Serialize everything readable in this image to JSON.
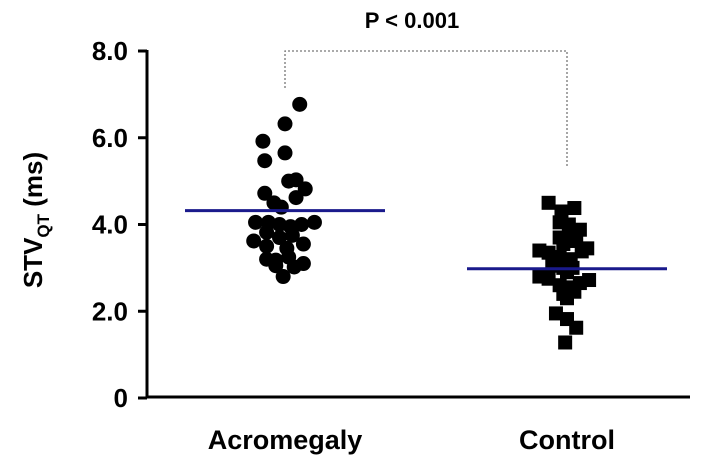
{
  "chart_data": {
    "type": "scatter",
    "subtype": "dot-plot",
    "ylabel_main": "STV",
    "ylabel_sub": "QT",
    "ylabel_unit": " (ms)",
    "y_ticks": [
      "0",
      "2.0",
      "4.0",
      "6.0",
      "8.0"
    ],
    "y_tick_values": [
      0,
      2,
      4,
      6,
      8
    ],
    "ylim": [
      0,
      8
    ],
    "annotation": "P < 0.001",
    "grid": false,
    "colors": {
      "points": "#000000",
      "mean_line": "#1a1a8c",
      "bracket": "#777777"
    },
    "groups": [
      {
        "label": "Acromegaly",
        "marker": "circle",
        "mean": 4.32,
        "points": [
          {
            "dx": 0.16,
            "y": 6.77
          },
          {
            "dx": 0.0,
            "y": 6.32
          },
          {
            "dx": -0.24,
            "y": 5.92
          },
          {
            "dx": -0.22,
            "y": 5.47
          },
          {
            "dx": 0.0,
            "y": 5.65
          },
          {
            "dx": 0.04,
            "y": 5.0
          },
          {
            "dx": 0.12,
            "y": 5.03
          },
          {
            "dx": -0.22,
            "y": 4.72
          },
          {
            "dx": 0.22,
            "y": 4.82
          },
          {
            "dx": -0.12,
            "y": 4.5
          },
          {
            "dx": 0.12,
            "y": 4.62
          },
          {
            "dx": -0.04,
            "y": 4.4
          },
          {
            "dx": -0.32,
            "y": 4.05
          },
          {
            "dx": -0.18,
            "y": 4.05
          },
          {
            "dx": -0.06,
            "y": 4.0
          },
          {
            "dx": 0.06,
            "y": 3.95
          },
          {
            "dx": 0.18,
            "y": 4.0
          },
          {
            "dx": 0.32,
            "y": 4.05
          },
          {
            "dx": -0.2,
            "y": 3.82
          },
          {
            "dx": -0.06,
            "y": 3.7
          },
          {
            "dx": 0.08,
            "y": 3.75
          },
          {
            "dx": -0.34,
            "y": 3.62
          },
          {
            "dx": -0.2,
            "y": 3.5
          },
          {
            "dx": 0.02,
            "y": 3.45
          },
          {
            "dx": 0.2,
            "y": 3.55
          },
          {
            "dx": -0.2,
            "y": 3.2
          },
          {
            "dx": -0.1,
            "y": 3.18
          },
          {
            "dx": 0.04,
            "y": 3.25
          },
          {
            "dx": 0.2,
            "y": 3.1
          },
          {
            "dx": -0.1,
            "y": 3.05
          },
          {
            "dx": 0.1,
            "y": 3.02
          },
          {
            "dx": -0.02,
            "y": 2.8
          }
        ]
      },
      {
        "label": "Control",
        "marker": "square",
        "mean": 2.98,
        "points": [
          {
            "dx": -0.2,
            "y": 4.5
          },
          {
            "dx": -0.06,
            "y": 4.3
          },
          {
            "dx": 0.08,
            "y": 4.38
          },
          {
            "dx": -0.08,
            "y": 4.05
          },
          {
            "dx": 0.02,
            "y": 4.0
          },
          {
            "dx": 0.14,
            "y": 3.88
          },
          {
            "dx": -0.08,
            "y": 3.7
          },
          {
            "dx": 0.04,
            "y": 3.7
          },
          {
            "dx": -0.04,
            "y": 3.55
          },
          {
            "dx": 0.1,
            "y": 3.62
          },
          {
            "dx": 0.22,
            "y": 3.45
          },
          {
            "dx": -0.3,
            "y": 3.4
          },
          {
            "dx": -0.2,
            "y": 3.35
          },
          {
            "dx": 0.16,
            "y": 3.38
          },
          {
            "dx": -0.08,
            "y": 3.25
          },
          {
            "dx": 0.04,
            "y": 3.2
          },
          {
            "dx": -0.16,
            "y": 3.05
          },
          {
            "dx": -0.04,
            "y": 3.0
          },
          {
            "dx": 0.06,
            "y": 3.0
          },
          {
            "dx": -0.3,
            "y": 2.8
          },
          {
            "dx": -0.2,
            "y": 2.75
          },
          {
            "dx": 0.0,
            "y": 2.9
          },
          {
            "dx": 0.14,
            "y": 2.65
          },
          {
            "dx": 0.24,
            "y": 2.72
          },
          {
            "dx": -0.08,
            "y": 2.6
          },
          {
            "dx": 0.04,
            "y": 2.55
          },
          {
            "dx": -0.04,
            "y": 2.4
          },
          {
            "dx": 0.08,
            "y": 2.45
          },
          {
            "dx": 0.0,
            "y": 2.3
          },
          {
            "dx": -0.12,
            "y": 1.95
          },
          {
            "dx": 0.0,
            "y": 1.82
          },
          {
            "dx": 0.1,
            "y": 1.62
          },
          {
            "dx": -0.02,
            "y": 1.28
          }
        ]
      }
    ]
  }
}
